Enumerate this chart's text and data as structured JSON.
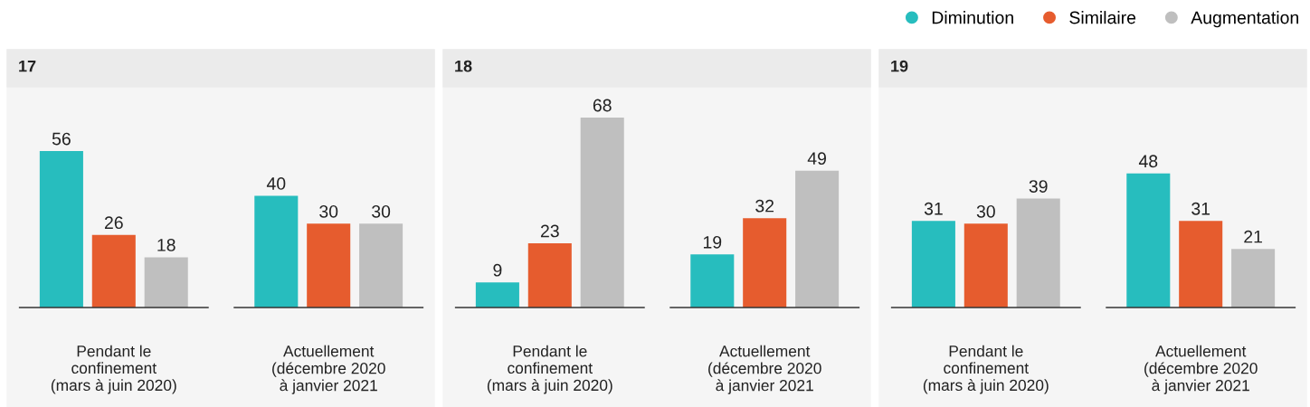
{
  "chart_data": [
    {
      "type": "bar",
      "title": "17",
      "categories": [
        "Pendant le\nconfinement\n(mars à juin 2020)",
        "Actuellement\n(décembre 2020\nà janvier 2021"
      ],
      "data_labels": true,
      "series": [
        {
          "color": "#27bdbe",
          "values": [
            56,
            40
          ]
        },
        {
          "color": "#e65c2e",
          "values": [
            26,
            30
          ]
        },
        {
          "color": "#bfbfbf",
          "values": [
            18,
            30
          ]
        }
      ]
    },
    {
      "type": "bar",
      "title": "18",
      "categories": [
        "Pendant le\nconfinement\n(mars à juin 2020)",
        "Actuellement\n(décembre 2020\nà janvier 2021"
      ],
      "data_labels": true,
      "series": [
        {
          "color": "#27bdbe",
          "values": [
            9,
            19
          ]
        },
        {
          "color": "#e65c2e",
          "values": [
            23,
            32
          ]
        },
        {
          "color": "#bfbfbf",
          "values": [
            68,
            49
          ]
        }
      ]
    },
    {
      "type": "bar",
      "title": "19",
      "categories": [
        "Pendant le\nconfinement\n(mars à juin 2020)",
        "Actuellement\n(décembre 2020\nà janvier 2021"
      ],
      "data_labels": true,
      "legend": "top right",
      "series": [
        {
          "name": "Diminution",
          "color": "#27bdbe",
          "values": [
            31,
            48
          ]
        },
        {
          "name": "Similaire",
          "color": "#e65c2e",
          "values": [
            30,
            31
          ]
        },
        {
          "name": "Augmentation",
          "color": "#bfbfbf",
          "values": [
            39,
            21
          ]
        }
      ]
    }
  ]
}
